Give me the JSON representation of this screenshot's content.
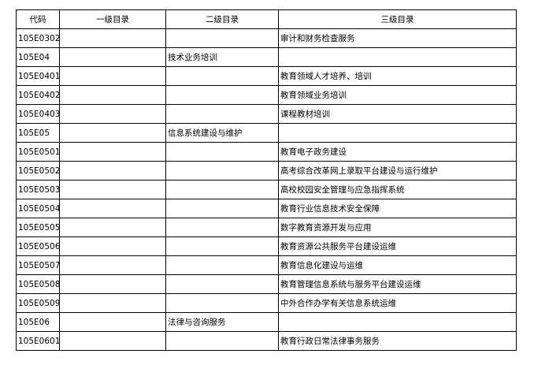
{
  "table": {
    "headers": [
      "代码",
      "一级目录",
      "二级目录",
      "三级目录"
    ],
    "rows": [
      {
        "code": "105E0302",
        "level3": "审计和财务检查服务"
      },
      {
        "code": "105E04",
        "level2": "技术业务培训"
      },
      {
        "code": "105E0401",
        "level3": "教育领域人才培养、培训"
      },
      {
        "code": "105E0402",
        "level3": "教育领域业务培训"
      },
      {
        "code": "105E0403",
        "level3": "课程教材培训"
      },
      {
        "code": "105E05",
        "level2": "信息系统建设与维护"
      },
      {
        "code": "105E0501",
        "level3": "教育电子政务建设"
      },
      {
        "code": "105E0502",
        "level3": "高考综合改革网上录取平台建设与运行维护"
      },
      {
        "code": "105E0503",
        "level3": "高校校园安全管理与应急指挥系统"
      },
      {
        "code": "105E0504",
        "level3": "教育行业信息技术安全保障"
      },
      {
        "code": "105E0505",
        "level3": "数字教育资源开发与应用"
      },
      {
        "code": "105E0506",
        "level3": "教育资源公共服务平台建设运维"
      },
      {
        "code": "105E0507",
        "level3": "教育信息化建设与运维"
      },
      {
        "code": "105E0508",
        "level3": "教育管理信息系统与服务平台建设运维"
      },
      {
        "code": "105E0509",
        "level3": "中外合作办学有关信息系统运维"
      },
      {
        "code": "105E06",
        "level2": "法律与咨询服务"
      },
      {
        "code": "105E0601",
        "level3": "教育行政日常法律事务服务"
      }
    ]
  }
}
